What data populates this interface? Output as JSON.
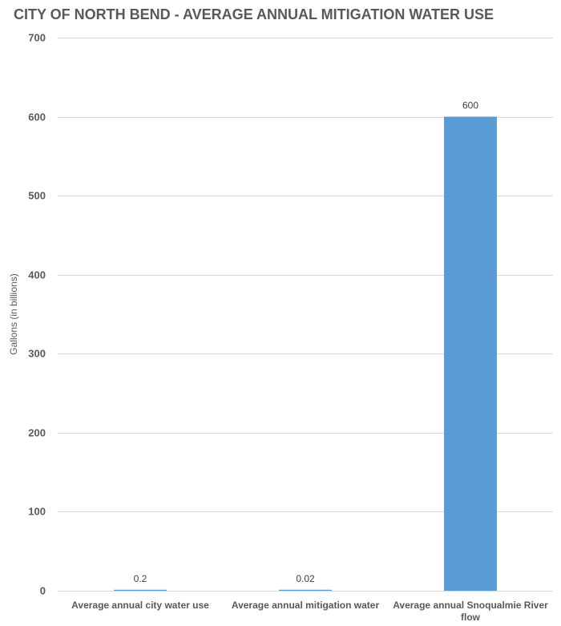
{
  "chart_data": {
    "type": "bar",
    "title": "CITY OF NORTH BEND - AVERAGE ANNUAL MITIGATION WATER USE",
    "xlabel": "",
    "ylabel": "Gallons (in billions)",
    "ylim": [
      0,
      700
    ],
    "yticks": [
      0,
      100,
      200,
      300,
      400,
      500,
      600,
      700
    ],
    "grid": true,
    "legend": "none",
    "categories": [
      [
        "Average annual city water use"
      ],
      [
        "Average annual mitigation water"
      ],
      [
        "Average annual Snoqualmie River",
        "flow"
      ]
    ],
    "values": [
      0.2,
      0.02,
      600
    ],
    "data_labels": [
      "0.2",
      "0.02",
      "600"
    ],
    "bar_color": "#5b9bd5"
  }
}
